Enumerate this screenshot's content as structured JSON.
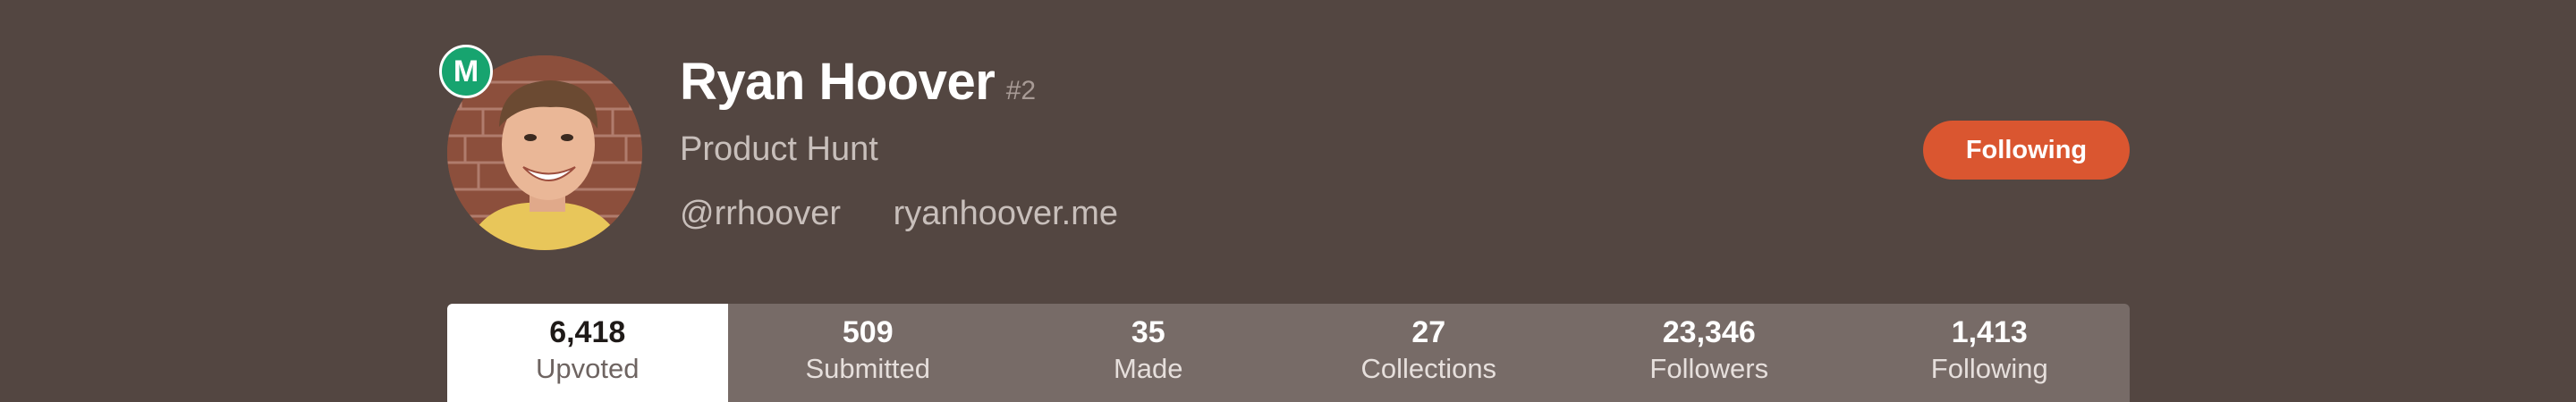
{
  "profile": {
    "name": "Ryan Hoover",
    "rank": "#2",
    "headline": "Product Hunt",
    "twitter": "@rrhoover",
    "website": "ryanhoover.me",
    "maker_badge": "M"
  },
  "actions": {
    "follow_label": "Following"
  },
  "stats": [
    {
      "value": "6,418",
      "label": "Upvoted"
    },
    {
      "value": "509",
      "label": "Submitted"
    },
    {
      "value": "35",
      "label": "Made"
    },
    {
      "value": "27",
      "label": "Collections"
    },
    {
      "value": "23,346",
      "label": "Followers"
    },
    {
      "value": "1,413",
      "label": "Following"
    }
  ],
  "colors": {
    "header_bg": "#534641",
    "follow_button": "#da5630",
    "maker_badge": "#17a46f",
    "stats_bar": "#776b67",
    "active_tab": "#ffffff"
  }
}
